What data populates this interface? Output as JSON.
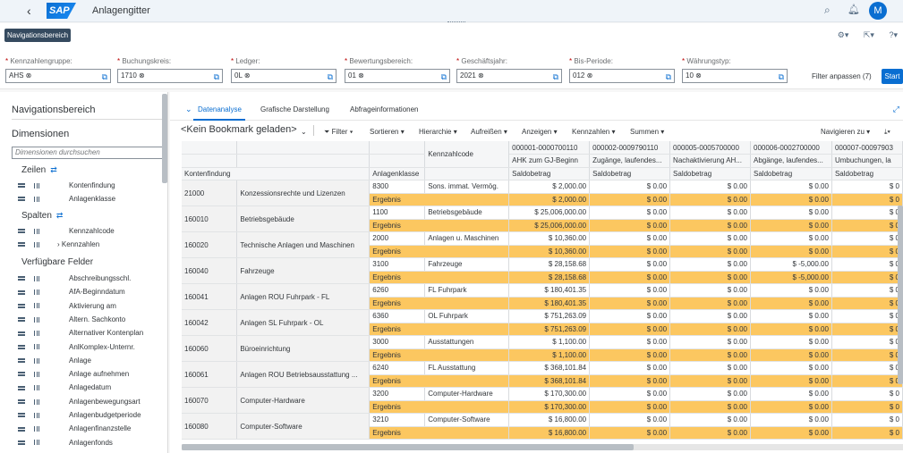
{
  "shell": {
    "title": "Anlagengitter",
    "user_initial": "M",
    "logo_text": "SAP"
  },
  "toolbar": {
    "nav_button": "Navigationsbereich"
  },
  "filters": [
    {
      "label": "Kennzahlengruppe:",
      "value": "AHS"
    },
    {
      "label": "Buchungskreis:",
      "value": "1710"
    },
    {
      "label": "Ledger:",
      "value": "0L"
    },
    {
      "label": "Bewertungsbereich:",
      "value": "01"
    },
    {
      "label": "Geschäftsjahr:",
      "value": "2021"
    },
    {
      "label": "Bis-Periode:",
      "value": "012"
    },
    {
      "label": "Währungstyp:",
      "value": "10"
    }
  ],
  "filter_adapt": "Filter anpassen (7)",
  "start_label": "Start",
  "nav": {
    "title": "Navigationsbereich",
    "dimensions": "Dimensionen",
    "search_placeholder": "Dimensionen durchsuchen",
    "rows_label": "Zeilen",
    "rows": [
      "Kontenfindung",
      "Anlagenklasse"
    ],
    "cols_label": "Spalten",
    "cols": [
      "Kennzahlcode",
      "Kennzahlen"
    ],
    "available_label": "Verfügbare Felder",
    "available": [
      "Abschreibungsschl.",
      "AfA-Beginndatum",
      "Aktivierung am",
      "Altern. Sachkonto",
      "Alternativer Kontenplan",
      "AnlKomplex-Unternr.",
      "Anlage",
      "Anlage aufnehmen",
      "Anlagedatum",
      "Anlagenbewegungsart",
      "Anlagenbudgetperiode",
      "Anlagenfinanzstelle",
      "Anlagenfonds"
    ]
  },
  "tabs": [
    "Datenanalyse",
    "Grafische Darstellung",
    "Abfrageinformationen"
  ],
  "toolbar2": {
    "bookmark": "<Kein Bookmark geladen>",
    "items": [
      "Filter",
      "Sortieren",
      "Hierarchie",
      "Aufreißen",
      "Anzeigen",
      "Kennzahlen",
      "Summen"
    ],
    "navigate": "Navigieren zu"
  },
  "grid": {
    "header_kennzahlcode": "Kennzahlcode",
    "col_kontenfindung": "Kontenfindung",
    "col_anlagenklasse": "Anlagenklasse",
    "measure_codes": [
      "000001-0000700110",
      "000002-0009790110",
      "000005-0005700000",
      "000006-0002700000",
      "000007-00097903"
    ],
    "measure_names": [
      "AHK zum GJ-Beginn",
      "Zugänge, laufendes...",
      "Nachaktivierung AH...",
      "Abgänge, laufendes...",
      "Umbuchungen, la"
    ],
    "measure_type": "Saldobetrag",
    "result_label": "Ergebnis",
    "rows": [
      {
        "konto": "21000",
        "konto_text": "Konzessionsrechte und Lizenzen",
        "klasse": "8300",
        "klasse_text": "Sons. immat. Vermög.",
        "values": [
          "$ 2,000.00",
          "$ 0.00",
          "$ 0.00",
          "$ 0.00",
          "$ 0"
        ],
        "results": [
          "$ 2,000.00",
          "$ 0.00",
          "$ 0.00",
          "$ 0.00",
          "$ 0"
        ]
      },
      {
        "konto": "160010",
        "konto_text": "Betriebsgebäude",
        "klasse": "1100",
        "klasse_text": "Betriebsgebäude",
        "values": [
          "$ 25,006,000.00",
          "$ 0.00",
          "$ 0.00",
          "$ 0.00",
          "$ 0"
        ],
        "results": [
          "$ 25,006,000.00",
          "$ 0.00",
          "$ 0.00",
          "$ 0.00",
          "$ 0"
        ]
      },
      {
        "konto": "160020",
        "konto_text": "Technische Anlagen und Maschinen",
        "klasse": "2000",
        "klasse_text": "Anlagen u. Maschinen",
        "values": [
          "$ 10,360.00",
          "$ 0.00",
          "$ 0.00",
          "$ 0.00",
          "$ 0"
        ],
        "results": [
          "$ 10,360.00",
          "$ 0.00",
          "$ 0.00",
          "$ 0.00",
          "$ 0"
        ]
      },
      {
        "konto": "160040",
        "konto_text": "Fahrzeuge",
        "klasse": "3100",
        "klasse_text": "Fahrzeuge",
        "values": [
          "$ 28,158.68",
          "$ 0.00",
          "$ 0.00",
          "$ -5,000.00",
          "$ 0"
        ],
        "results": [
          "$ 28,158.68",
          "$ 0.00",
          "$ 0.00",
          "$ -5,000.00",
          "$ 0"
        ]
      },
      {
        "konto": "160041",
        "konto_text": "Anlagen ROU Fuhrpark - FL",
        "klasse": "6260",
        "klasse_text": "FL Fuhrpark",
        "values": [
          "$ 180,401.35",
          "$ 0.00",
          "$ 0.00",
          "$ 0.00",
          "$ 0"
        ],
        "results": [
          "$ 180,401.35",
          "$ 0.00",
          "$ 0.00",
          "$ 0.00",
          "$ 0"
        ]
      },
      {
        "konto": "160042",
        "konto_text": "Anlagen SL Fuhrpark - OL",
        "klasse": "6360",
        "klasse_text": "OL Fuhrpark",
        "values": [
          "$ 751,263.09",
          "$ 0.00",
          "$ 0.00",
          "$ 0.00",
          "$ 0"
        ],
        "results": [
          "$ 751,263.09",
          "$ 0.00",
          "$ 0.00",
          "$ 0.00",
          "$ 0"
        ]
      },
      {
        "konto": "160060",
        "konto_text": "Büroeinrichtung",
        "klasse": "3000",
        "klasse_text": "Ausstattungen",
        "values": [
          "$ 1,100.00",
          "$ 0.00",
          "$ 0.00",
          "$ 0.00",
          "$ 0"
        ],
        "results": [
          "$ 1,100.00",
          "$ 0.00",
          "$ 0.00",
          "$ 0.00",
          "$ 0"
        ]
      },
      {
        "konto": "160061",
        "konto_text": "Anlagen ROU Betriebsausstattung ...",
        "klasse": "6240",
        "klasse_text": "FL Ausstattung",
        "values": [
          "$ 368,101.84",
          "$ 0.00",
          "$ 0.00",
          "$ 0.00",
          "$ 0"
        ],
        "results": [
          "$ 368,101.84",
          "$ 0.00",
          "$ 0.00",
          "$ 0.00",
          "$ 0"
        ]
      },
      {
        "konto": "160070",
        "konto_text": "Computer-Hardware",
        "klasse": "3200",
        "klasse_text": "Computer-Hardware",
        "values": [
          "$ 170,300.00",
          "$ 0.00",
          "$ 0.00",
          "$ 0.00",
          "$ 0"
        ],
        "results": [
          "$ 170,300.00",
          "$ 0.00",
          "$ 0.00",
          "$ 0.00",
          "$ 0"
        ]
      },
      {
        "konto": "160080",
        "konto_text": "Computer-Software",
        "klasse": "3210",
        "klasse_text": "Computer-Software",
        "values": [
          "$ 16,800.00",
          "$ 0.00",
          "$ 0.00",
          "$ 0.00",
          "$ 0"
        ],
        "results": [
          "$ 16,800.00",
          "$ 0.00",
          "$ 0.00",
          "$ 0.00",
          "$ 0"
        ]
      }
    ]
  }
}
